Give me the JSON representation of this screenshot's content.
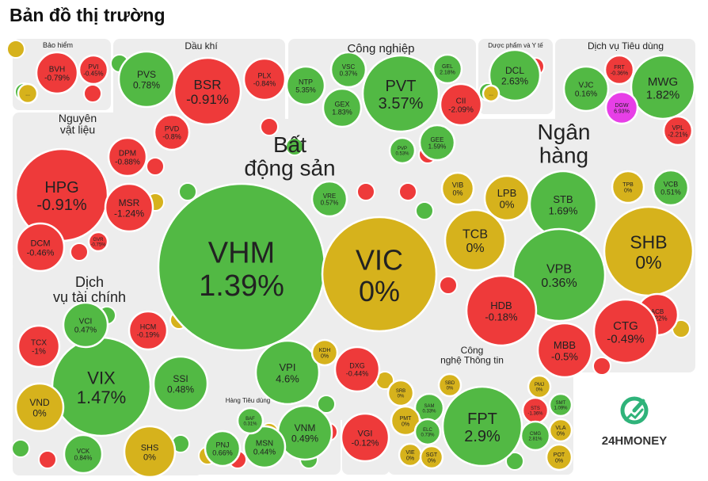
{
  "page_title": "Bản đồ thị trường",
  "colors": {
    "up": "#52b944",
    "down": "#ee3a3a",
    "flat": "#d6b21c",
    "ceiling": "#e73fe7",
    "frame": "#ededed",
    "logo_bg": "#e6e6e6",
    "logo_green": "#2fb37a"
  },
  "logo": {
    "text": "24HMONEY",
    "icon": "24hmoney-logo-icon"
  },
  "chart_data": {
    "type": "treemap",
    "title": "Bản đồ thị trường",
    "sectors": [
      {
        "name": "Bảo hiểm",
        "tickers": [
          {
            "t": "BVH",
            "c": "-0.79%"
          },
          {
            "t": "PVI",
            "c": "-0.45%"
          },
          {
            "t": "...",
            "c": ""
          }
        ]
      },
      {
        "name": "Dầu khí",
        "tickers": [
          {
            "t": "PVS",
            "c": "0.78%"
          },
          {
            "t": "BSR",
            "c": "-0.91%"
          },
          {
            "t": "PLX",
            "c": "-0.84%"
          },
          {
            "t": "PVD",
            "c": "-0.8%"
          }
        ]
      },
      {
        "name": "Công nghiệp",
        "tickers": [
          {
            "t": "PVT",
            "c": "3.57%"
          },
          {
            "t": "NTP",
            "c": "5.35%"
          },
          {
            "t": "VSC",
            "c": "0.37%"
          },
          {
            "t": "GEX",
            "c": "1.83%"
          },
          {
            "t": "CII",
            "c": "-2.09%"
          },
          {
            "t": "GEL",
            "c": "2.18%"
          },
          {
            "t": "GEE",
            "c": "1.59%"
          },
          {
            "t": "PVP",
            "c": "0.53%"
          }
        ]
      },
      {
        "name": "Dược phẩm và Y tế",
        "tickers": [
          {
            "t": "DCL",
            "c": "2.63%"
          },
          {
            "t": "...",
            "c": ""
          }
        ]
      },
      {
        "name": "Dịch vụ Tiêu dùng",
        "tickers": [
          {
            "t": "MWG",
            "c": "1.82%"
          },
          {
            "t": "VJC",
            "c": "0.16%"
          },
          {
            "t": "FRT",
            "c": "-0.36%"
          },
          {
            "t": "DGW",
            "c": "6.93%"
          },
          {
            "t": "VPL",
            "c": "-2.21%"
          }
        ]
      },
      {
        "name": "Nguyên vật liệu",
        "tickers": [
          {
            "t": "HPG",
            "c": "-0.91%"
          },
          {
            "t": "DPM",
            "c": "-0.88%"
          },
          {
            "t": "MSR",
            "c": "-1.24%"
          },
          {
            "t": "DCM",
            "c": "-0.46%"
          },
          {
            "t": "GVR",
            "c": "-0.75%"
          }
        ]
      },
      {
        "name": "Bất động sản",
        "tickers": [
          {
            "t": "VHM",
            "c": "1.39%"
          },
          {
            "t": "VIC",
            "c": "0%"
          },
          {
            "t": "VRE",
            "c": "0.57%"
          },
          {
            "t": "VPI",
            "c": "4.6%"
          },
          {
            "t": "KDH",
            "c": "0%"
          },
          {
            "t": "DXG",
            "c": "-0.44%"
          }
        ]
      },
      {
        "name": "Ngân hàng",
        "tickers": [
          {
            "t": "VIB",
            "c": "0%"
          },
          {
            "t": "LPB",
            "c": "0%"
          },
          {
            "t": "STB",
            "c": "1.69%"
          },
          {
            "t": "TPB",
            "c": "0%"
          },
          {
            "t": "VCB",
            "c": "0.51%"
          },
          {
            "t": "TCB",
            "c": "0%"
          },
          {
            "t": "SHB",
            "c": "0%"
          },
          {
            "t": "VPB",
            "c": "0.36%"
          },
          {
            "t": "HDB",
            "c": "-0.18%"
          },
          {
            "t": "ACB",
            "c": "-0.22%"
          },
          {
            "t": "CTG",
            "c": "-0.49%"
          },
          {
            "t": "MBB",
            "c": "-0.5%"
          }
        ]
      },
      {
        "name": "Dịch vụ tài chính",
        "tickers": [
          {
            "t": "VIX",
            "c": "1.47%"
          },
          {
            "t": "VCI",
            "c": "0.47%"
          },
          {
            "t": "HCM",
            "c": "-0.19%"
          },
          {
            "t": "TCX",
            "c": "-1%"
          },
          {
            "t": "SSI",
            "c": "0.48%"
          },
          {
            "t": "VND",
            "c": "0%"
          },
          {
            "t": "SHS",
            "c": "0%"
          },
          {
            "t": "VCK",
            "c": "0.84%"
          }
        ]
      },
      {
        "name": "Hàng Tiêu dùng",
        "tickers": [
          {
            "t": "VNM",
            "c": "0.49%"
          },
          {
            "t": "MSN",
            "c": "0.44%"
          },
          {
            "t": "PNJ",
            "c": "0.66%"
          },
          {
            "t": "BAF",
            "c": "0.31%"
          }
        ]
      },
      {
        "name": "",
        "tickers": [
          {
            "t": "VGI",
            "c": "-0.12%"
          }
        ]
      },
      {
        "name": "Công nghệ Thông tin",
        "tickers": [
          {
            "t": "FPT",
            "c": "2.9%"
          },
          {
            "t": "SRB",
            "c": "0%"
          },
          {
            "t": "SAM",
            "c": "0.33%"
          },
          {
            "t": "SBD",
            "c": "0%"
          },
          {
            "t": "PMT",
            "c": "0%"
          },
          {
            "t": "ELC",
            "c": "0.73%"
          },
          {
            "t": "VIE",
            "c": "0%"
          },
          {
            "t": "SGT",
            "c": "0%"
          },
          {
            "t": "PMJ",
            "c": "0%"
          },
          {
            "t": "STS",
            "c": "-1.36%"
          },
          {
            "t": "SMT",
            "c": "1.09%"
          },
          {
            "t": "CMG",
            "c": "2.81%"
          },
          {
            "t": "VLA",
            "c": "0%"
          },
          {
            "t": "POT",
            "c": "0%"
          }
        ]
      }
    ]
  }
}
